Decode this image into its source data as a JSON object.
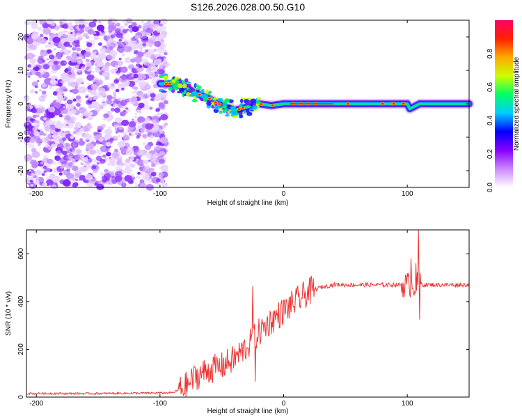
{
  "title": "S126.2026.028.00.50.G10",
  "chart_data": [
    {
      "type": "heatmap",
      "xlabel": "Height of straight line (km)",
      "ylabel": "Frequency (Hz)",
      "xlim": [
        -208,
        150
      ],
      "ylim": [
        -25,
        25
      ],
      "xticks": [
        -200,
        -100,
        0,
        100
      ],
      "yticks": [
        -20,
        -10,
        0,
        10,
        20
      ],
      "colorbar": {
        "label": "Normalized spectral amplitude",
        "range": [
          0,
          1
        ],
        "ticks": [
          "0.0",
          "0.2",
          "0.4",
          "0.6",
          "0.8"
        ],
        "tick_values": [
          0,
          0.2,
          0.4,
          0.6,
          0.8
        ],
        "colors": [
          "#ffffff",
          "#cc88ff",
          "#8800ff",
          "#0000ff",
          "#00ccff",
          "#00ff66",
          "#ccff00",
          "#ffaa00",
          "#ff2200",
          "#ff0066"
        ]
      },
      "ridge": {
        "x": [
          -100,
          -90,
          -80,
          -70,
          -60,
          -50,
          -40,
          -30,
          -20,
          -10,
          0,
          20,
          50,
          80,
          100,
          102,
          110,
          150
        ],
        "y": [
          6,
          6,
          5,
          3,
          1.5,
          -0.5,
          -2,
          -1,
          0,
          -0.5,
          0,
          0,
          0,
          0,
          0,
          -1.5,
          0,
          0
        ]
      },
      "noise_region_x": [
        -208,
        -95
      ]
    },
    {
      "type": "line",
      "xlabel": "Height of straight line (km)",
      "ylabel": "SNR (10 * v/v)",
      "xlim": [
        -208,
        150
      ],
      "ylim": [
        0,
        700
      ],
      "xticks": [
        -200,
        -100,
        0,
        100
      ],
      "yticks": [
        0,
        200,
        400,
        600
      ],
      "color": "#ee3333",
      "trend": {
        "x": [
          -208,
          -150,
          -90,
          -80,
          -70,
          -60,
          -50,
          -40,
          -30,
          -20,
          -10,
          0,
          10,
          20,
          30,
          40,
          60,
          80,
          100,
          120,
          150
        ],
        "y": [
          15,
          15,
          18,
          40,
          90,
          115,
          130,
          160,
          210,
          270,
          320,
          360,
          400,
          440,
          460,
          470,
          470,
          470,
          470,
          470,
          470
        ]
      },
      "spikes": [
        {
          "x": -25,
          "y": 465
        },
        {
          "x": -23,
          "y": 65
        },
        {
          "x": 103,
          "y": 580
        },
        {
          "x": 107,
          "y": 560
        },
        {
          "x": 109,
          "y": 700
        },
        {
          "x": 110,
          "y": 325
        }
      ]
    }
  ]
}
